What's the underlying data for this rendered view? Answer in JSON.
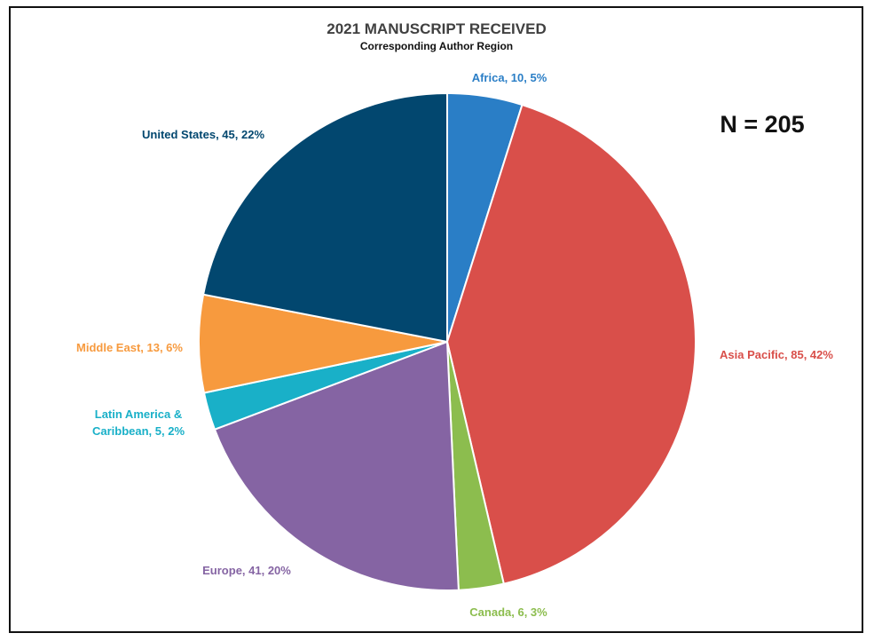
{
  "chart_data": {
    "type": "pie",
    "title": "2021 MANUSCRIPT RECEIVED",
    "subtitle": "Corresponding Author Region",
    "annotation": "N = 205",
    "start_angle_deg": 0,
    "direction": "clockwise",
    "slices": [
      {
        "name": "Africa",
        "value": 10,
        "percent": "5%",
        "label_lines": [
          "Africa, 10, 5%"
        ],
        "color": "#2a7ec6"
      },
      {
        "name": "Asia Pacific",
        "value": 85,
        "percent": "42%",
        "label_lines": [
          "Asia Pacific, 85, 42%"
        ],
        "color": "#d94f4a"
      },
      {
        "name": "Canada",
        "value": 6,
        "percent": "3%",
        "label_lines": [
          "Canada, 6, 3%"
        ],
        "color": "#8cbd4e"
      },
      {
        "name": "Europe",
        "value": 41,
        "percent": "20%",
        "label_lines": [
          "Europe, 41, 20%"
        ],
        "color": "#8564a3"
      },
      {
        "name": "Latin America & Caribbean",
        "value": 5,
        "percent": "2%",
        "label_lines": [
          "Latin America &",
          "Caribbean, 5, 2%"
        ],
        "color": "#19b0c8"
      },
      {
        "name": "Middle East",
        "value": 13,
        "percent": "6%",
        "label_lines": [
          "Middle East, 13, 6%"
        ],
        "color": "#f79a3e"
      },
      {
        "name": "United States",
        "value": 45,
        "percent": "22%",
        "label_lines": [
          "United States, 45, 22%"
        ],
        "color": "#02476f"
      }
    ]
  }
}
